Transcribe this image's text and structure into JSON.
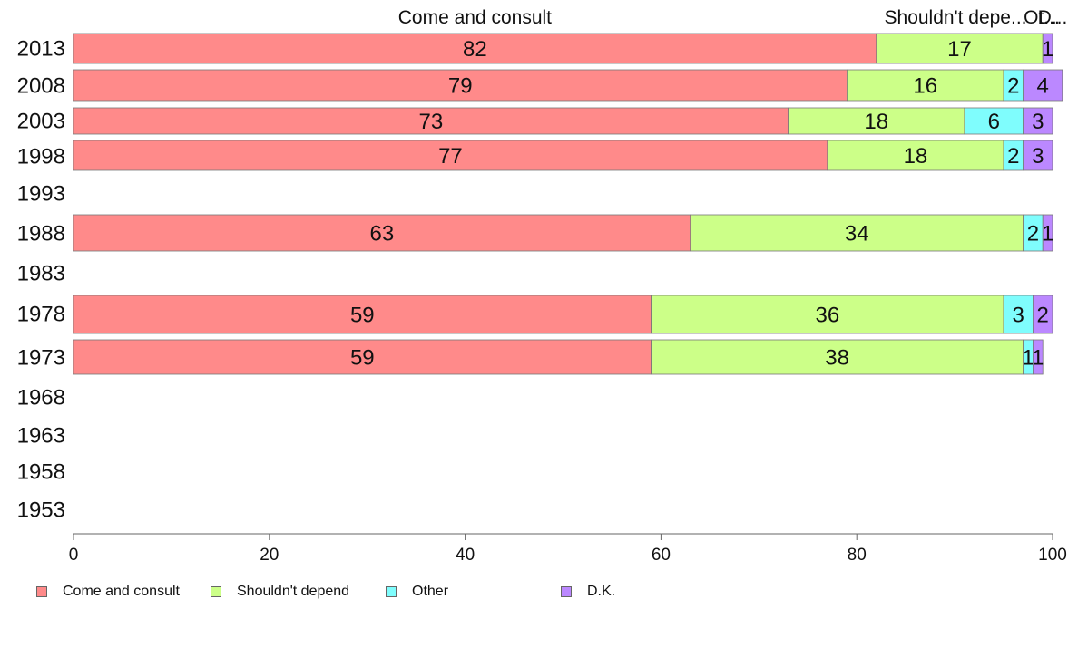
{
  "chart_data": {
    "type": "bar",
    "orientation": "horizontal",
    "stacked": true,
    "xlim": [
      0,
      100
    ],
    "x_ticks": [
      0,
      20,
      40,
      60,
      80,
      100
    ],
    "categories": [
      "2013",
      "2008",
      "2003",
      "1998",
      "1993",
      "1988",
      "1983",
      "1978",
      "1973",
      "1968",
      "1963",
      "1958",
      "1953"
    ],
    "series": [
      {
        "name": "Come and consult",
        "color": "#ff8a8a",
        "values": [
          82,
          79,
          73,
          77,
          null,
          63,
          null,
          59,
          59,
          null,
          null,
          null,
          null
        ]
      },
      {
        "name": "Shouldn't depend",
        "color": "#ccff88",
        "values": [
          17,
          16,
          18,
          18,
          null,
          34,
          null,
          36,
          38,
          null,
          null,
          null,
          null
        ]
      },
      {
        "name": "Other",
        "color": "#7ffdfd",
        "values": [
          0,
          2,
          6,
          2,
          null,
          2,
          null,
          3,
          1,
          null,
          null,
          null,
          null
        ]
      },
      {
        "name": "D.K.",
        "color": "#bb88ff",
        "values": [
          1,
          4,
          3,
          3,
          null,
          1,
          null,
          2,
          1,
          null,
          null,
          null,
          null
        ]
      }
    ],
    "top_labels": [
      "Come and consult",
      "Shouldn't depe...",
      "Ot...",
      "D..."
    ],
    "grid": false,
    "legend_position": "bottom-left"
  }
}
